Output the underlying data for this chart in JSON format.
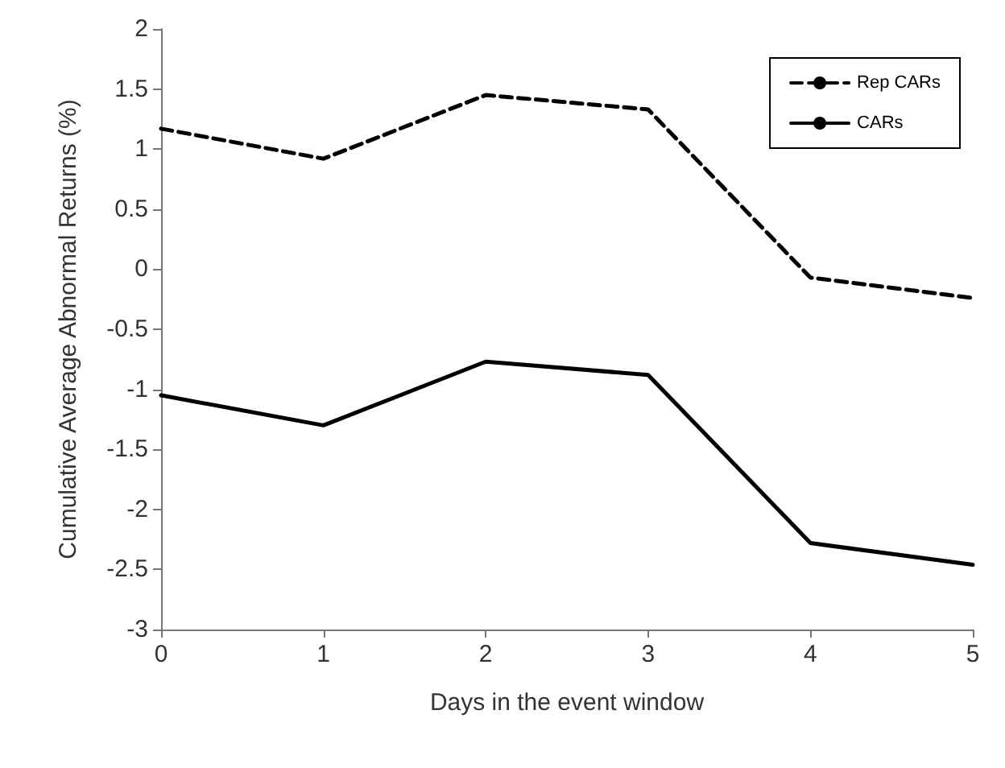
{
  "chart_data": {
    "type": "line",
    "xlabel": "Days in the event window",
    "ylabel": "Cumulative Average Abnormal Returns (%)",
    "x": [
      0,
      1,
      2,
      3,
      4,
      5
    ],
    "series": [
      {
        "name": "Rep CARs",
        "color": "#000000",
        "line_style": "dashed",
        "values": [
          1.17,
          0.92,
          1.45,
          1.33,
          -0.07,
          -0.24
        ]
      },
      {
        "name": "CARs",
        "color": "#000000",
        "line_style": "solid",
        "values": [
          -1.05,
          -1.3,
          -0.77,
          -0.88,
          -2.28,
          -2.46
        ]
      }
    ],
    "xlim": [
      0,
      5
    ],
    "xticks": [
      0,
      1,
      2,
      3,
      4,
      5
    ],
    "ylim": [
      -3,
      2
    ],
    "yticks": [
      -3,
      -2.5,
      -2,
      -1.5,
      -1,
      -0.5,
      0,
      0.5,
      1,
      1.5,
      2
    ],
    "grid": false,
    "legend": "top right",
    "marker": "none"
  }
}
